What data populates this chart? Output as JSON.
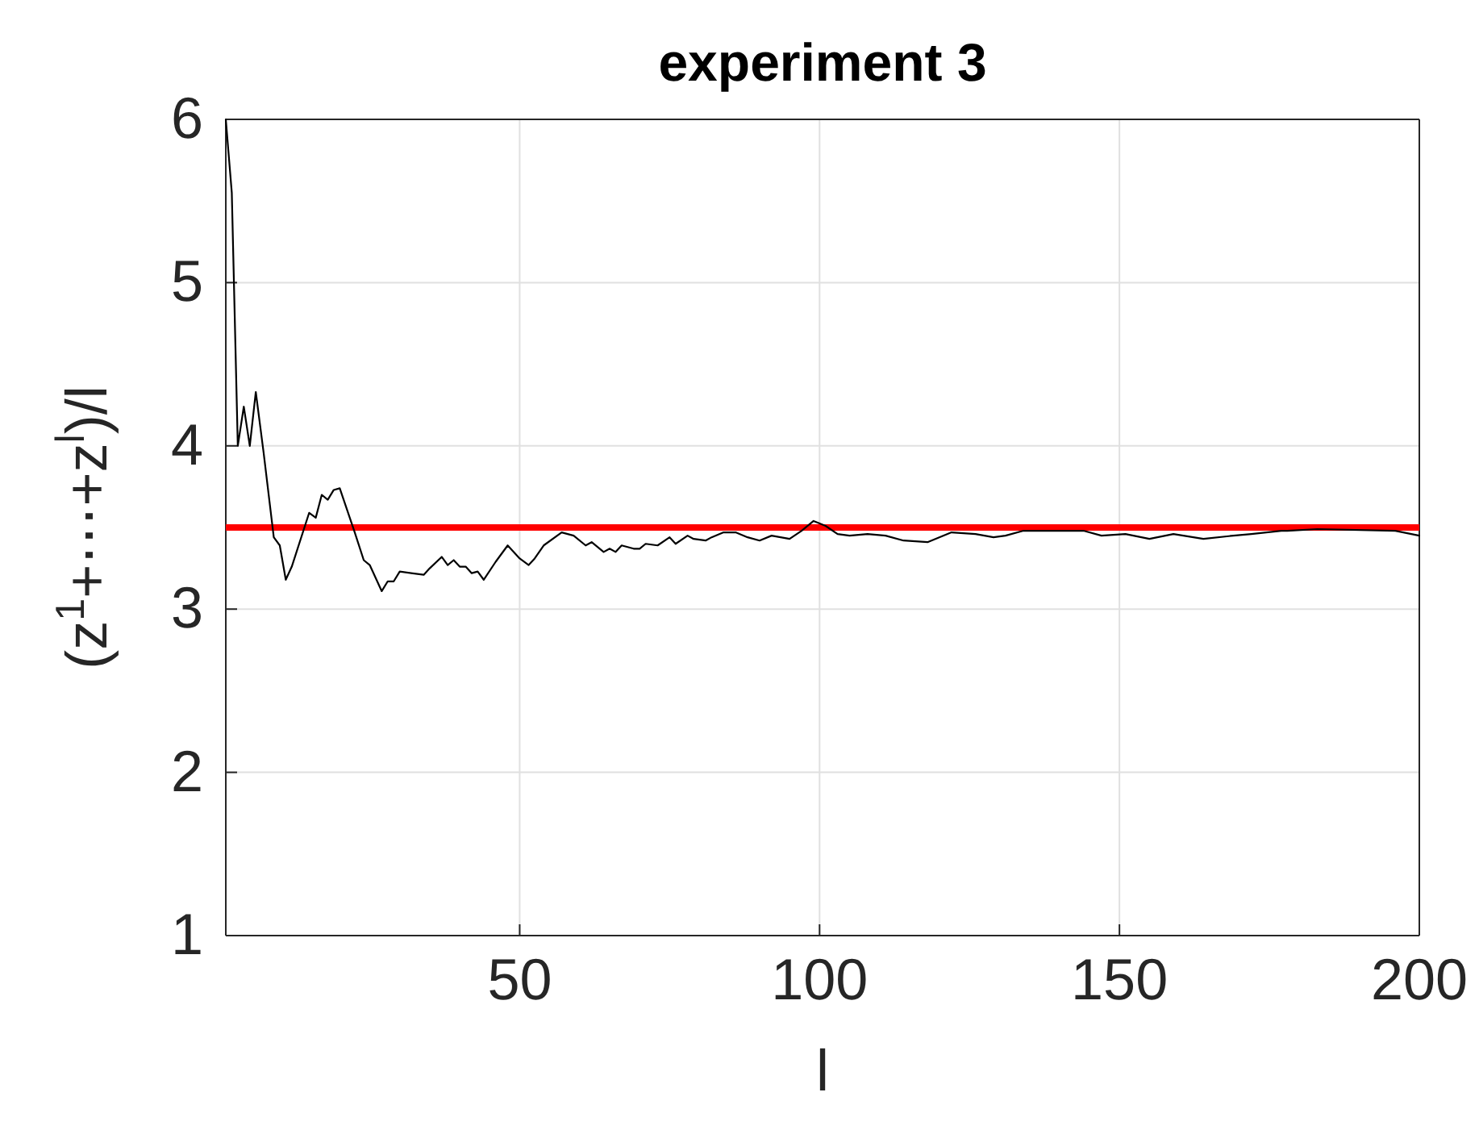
{
  "chart_data": {
    "type": "line",
    "title": "experiment 3",
    "xlabel": "l",
    "ylabel": "(z$^{1}$+⋯+z$^{l}$)/l",
    "xlim": [
      1,
      200
    ],
    "xticks": [
      50,
      100,
      150,
      200
    ],
    "ylim": [
      1,
      6
    ],
    "yticks": [
      1,
      2,
      3,
      4,
      5,
      6
    ],
    "grid": true,
    "line_style": "solid",
    "marker": "none",
    "ref_lines": [
      {
        "axis": "y",
        "value": 3.5,
        "color": "#ff0000"
      }
    ],
    "series": [
      {
        "color": "#000000",
        "x": [
          1,
          2,
          3,
          4,
          5,
          6,
          7.3,
          9,
          10,
          11,
          12,
          14.9,
          16,
          17,
          18,
          19,
          20,
          22.5,
          24,
          25,
          27,
          28,
          29,
          30,
          34,
          35,
          37,
          38,
          39,
          40,
          41,
          42,
          43,
          44,
          46,
          48,
          50,
          51.5,
          52.5,
          54,
          57,
          59,
          61,
          62,
          64,
          65,
          66,
          67,
          69,
          70,
          71,
          73,
          75,
          76,
          78,
          79,
          81,
          82,
          84,
          86,
          88,
          90,
          92,
          95,
          97,
          99,
          101,
          103,
          105,
          108,
          111,
          114,
          118,
          122,
          126,
          129,
          131,
          134,
          139,
          144,
          147,
          151,
          155,
          159,
          164,
          169,
          172,
          177,
          178,
          183,
          196,
          200
        ],
        "values": [
          6,
          5.55,
          4.0,
          4.24,
          4.0,
          4.33,
          3.96,
          3.44,
          3.39,
          3.18,
          3.26,
          3.59,
          3.56,
          3.7,
          3.67,
          3.73,
          3.74,
          3.47,
          3.3,
          3.27,
          3.11,
          3.17,
          3.17,
          3.23,
          3.21,
          3.25,
          3.32,
          3.27,
          3.3,
          3.26,
          3.26,
          3.22,
          3.23,
          3.18,
          3.29,
          3.39,
          3.31,
          3.27,
          3.31,
          3.39,
          3.47,
          3.45,
          3.39,
          3.41,
          3.35,
          3.37,
          3.35,
          3.39,
          3.37,
          3.37,
          3.4,
          3.39,
          3.44,
          3.4,
          3.45,
          3.43,
          3.42,
          3.44,
          3.47,
          3.47,
          3.44,
          3.42,
          3.45,
          3.43,
          3.48,
          3.54,
          3.51,
          3.46,
          3.45,
          3.46,
          3.45,
          3.42,
          3.41,
          3.47,
          3.46,
          3.44,
          3.45,
          3.48,
          3.48,
          3.48,
          3.45,
          3.46,
          3.43,
          3.46,
          3.43,
          3.45,
          3.46,
          3.48,
          3.48,
          3.49,
          3.48,
          3.45
        ]
      }
    ]
  }
}
